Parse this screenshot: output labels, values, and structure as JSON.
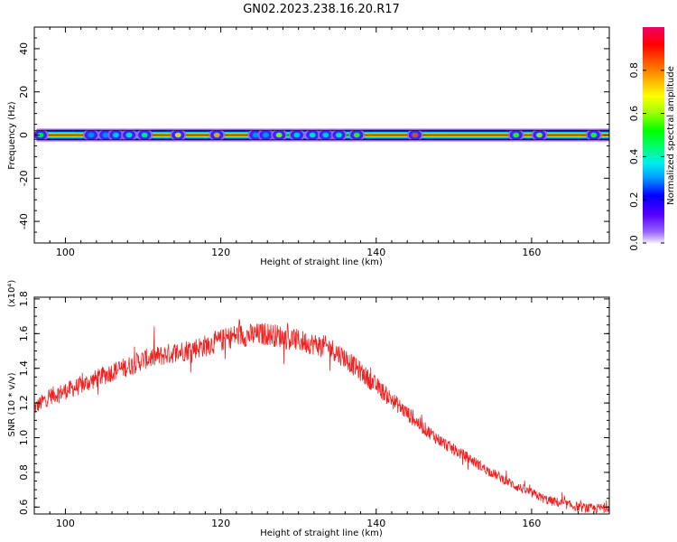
{
  "title": "GN02.2023.238.16.20.R17",
  "colors": {
    "background": "#ffffff",
    "axis": "#000000",
    "snr_line": "#ee2222",
    "colorbar": [
      "#9966ff",
      "#5500ff",
      "#0000ff",
      "#0099ff",
      "#00eeee",
      "#00ff66",
      "#00ff00",
      "#99ff00",
      "#ffff00",
      "#ffaa00",
      "#ff6600",
      "#ff0000",
      "#ee0066"
    ]
  },
  "chart_data": [
    {
      "id": "spectrogram",
      "type": "heatmap",
      "xlabel": "Height of straight line (km)",
      "ylabel": "Frequency (Hz)",
      "xlim": [
        96,
        170
      ],
      "ylim": [
        -50,
        50
      ],
      "xticks": [
        100,
        120,
        140,
        160
      ],
      "yticks": [
        -40,
        -20,
        0,
        20,
        40
      ],
      "grid": false,
      "band": {
        "center_freq": 0,
        "half_width_hz": 2,
        "segments": [
          {
            "x0": 96.3,
            "x1": 103,
            "peak": 0.92
          },
          {
            "x0": 103,
            "x1": 111,
            "peak": 0.55
          },
          {
            "x0": 111,
            "x1": 124,
            "peak": 0.92
          },
          {
            "x0": 124,
            "x1": 137.5,
            "peak": 0.5
          },
          {
            "x0": 137.5,
            "x1": 170,
            "peak": 0.92
          }
        ]
      },
      "blobs": [
        {
          "x": 96.8,
          "level": 0.5
        },
        {
          "x": 103.3,
          "level": 0.3
        },
        {
          "x": 105.2,
          "level": 0.25
        },
        {
          "x": 106.5,
          "level": 0.35
        },
        {
          "x": 108.2,
          "level": 0.4
        },
        {
          "x": 110.2,
          "level": 0.45
        },
        {
          "x": 114.5,
          "level": 0.7
        },
        {
          "x": 119.5,
          "level": 0.75
        },
        {
          "x": 124.5,
          "level": 0.25
        },
        {
          "x": 125.8,
          "level": 0.3
        },
        {
          "x": 127.5,
          "level": 0.6
        },
        {
          "x": 129.8,
          "level": 0.35
        },
        {
          "x": 131.8,
          "level": 0.4
        },
        {
          "x": 133.5,
          "level": 0.35
        },
        {
          "x": 135.2,
          "level": 0.4
        },
        {
          "x": 137.5,
          "level": 0.55
        },
        {
          "x": 145.0,
          "level": 0.85
        },
        {
          "x": 158.0,
          "level": 0.55
        },
        {
          "x": 161.0,
          "level": 0.6
        },
        {
          "x": 168.0,
          "level": 0.55
        }
      ],
      "colorbar": {
        "label": "Normalized spectral amplitude",
        "range": [
          0,
          1
        ],
        "ticks": [
          "0.0",
          "0.2",
          "0.4",
          "0.6",
          "0.8"
        ]
      }
    },
    {
      "id": "snr",
      "type": "line",
      "xlabel": "Height of straight line (km)",
      "ylabel": "SNR (10 * v/v)",
      "scale_note": "(x10⁴)",
      "xlim": [
        96,
        170
      ],
      "ylim": [
        0.56,
        1.81
      ],
      "xticks": [
        100,
        120,
        140,
        160
      ],
      "yticks": [
        "0.6",
        "0.8",
        "1.0",
        "1.2",
        "1.4",
        "1.6",
        "1.8"
      ],
      "grid": false,
      "series": [
        {
          "x": [
            96,
            98,
            100,
            102,
            104,
            106,
            108,
            110,
            112,
            114,
            116,
            118,
            120,
            122,
            124,
            126,
            128,
            130,
            132,
            134,
            136,
            138,
            140,
            142,
            144,
            146,
            148,
            150,
            152,
            154,
            156,
            158,
            160,
            162,
            164,
            166,
            168,
            170
          ],
          "y": [
            1.17,
            1.24,
            1.27,
            1.3,
            1.34,
            1.38,
            1.41,
            1.45,
            1.47,
            1.49,
            1.51,
            1.53,
            1.56,
            1.59,
            1.59,
            1.6,
            1.58,
            1.56,
            1.54,
            1.52,
            1.46,
            1.38,
            1.3,
            1.22,
            1.14,
            1.06,
            0.99,
            0.93,
            0.88,
            0.82,
            0.77,
            0.72,
            0.68,
            0.64,
            0.62,
            0.6,
            0.59,
            0.6
          ]
        }
      ]
    }
  ]
}
